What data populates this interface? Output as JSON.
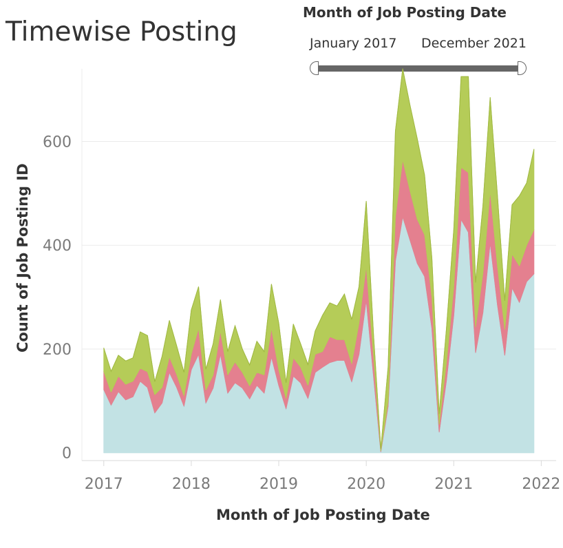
{
  "header": {
    "title": "Timewise Posting"
  },
  "filter": {
    "title": "Month of Job Posting Date",
    "start_label": "January 2017",
    "end_label": "December 2021"
  },
  "colors": {
    "series_1": "#c2e2e4",
    "series_2": "#e4808f",
    "series_3": "#b5cc58",
    "gridline": "#ebebeb",
    "axis": "#d9d9d9",
    "tick_text": "#7a7a7a"
  },
  "chart_data": {
    "type": "area",
    "stacked": true,
    "xlabel": "Month of Job Posting Date",
    "ylabel": "Count of Job Posting ID",
    "ylim": [
      -15,
      740
    ],
    "xlim": [
      2016.75,
      2022.17
    ],
    "grid": "horizontal",
    "legend": "none",
    "y_ticks": [
      0,
      200,
      400,
      600
    ],
    "x_ticks": [
      2017,
      2018,
      2019,
      2020,
      2021,
      2022
    ],
    "x_tick_labels": [
      "2017",
      "2018",
      "2019",
      "2020",
      "2021",
      "2022"
    ],
    "series": [
      {
        "values": [
          122,
          92,
          118,
          102,
          108,
          138,
          126,
          77,
          96,
          155,
          126,
          90,
          160,
          190,
          96,
          125,
          190,
          115,
          135,
          125,
          104,
          130,
          115,
          185,
          130,
          85,
          148,
          135,
          105,
          155,
          165,
          174,
          178,
          178,
          137,
          190,
          295,
          148,
          2,
          90,
          370,
          455,
          410,
          365,
          340,
          240,
          40,
          140,
          265,
          450,
          425,
          193,
          270,
          405,
          285,
          188,
          318,
          290,
          330,
          345
        ]
      },
      {
        "values": [
          35,
          25,
          30,
          30,
          30,
          25,
          30,
          35,
          30,
          30,
          25,
          20,
          30,
          50,
          25,
          25,
          45,
          35,
          40,
          30,
          25,
          25,
          35,
          55,
          30,
          20,
          35,
          30,
          25,
          35,
          30,
          50,
          40,
          40,
          35,
          60,
          65,
          40,
          2,
          10,
          85,
          110,
          95,
          85,
          80,
          60,
          15,
          35,
          55,
          100,
          115,
          50,
          75,
          100,
          75,
          50,
          65,
          70,
          70,
          85
        ]
      },
      {
        "values": [
          45,
          40,
          40,
          45,
          45,
          70,
          70,
          25,
          60,
          70,
          55,
          45,
          85,
          80,
          40,
          60,
          60,
          45,
          70,
          45,
          40,
          60,
          45,
          85,
          90,
          30,
          65,
          45,
          40,
          45,
          70,
          65,
          65,
          88,
          85,
          70,
          125,
          40,
          3,
          65,
          165,
          175,
          165,
          155,
          115,
          75,
          20,
          65,
          110,
          175,
          185,
          85,
          130,
          180,
          135,
          55,
          95,
          135,
          120,
          155
        ]
      }
    ]
  }
}
